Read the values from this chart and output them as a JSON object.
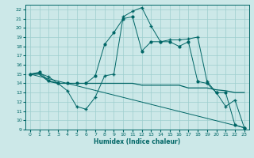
{
  "title": "",
  "xlabel": "Humidex (Indice chaleur)",
  "xlim": [
    -0.5,
    23.5
  ],
  "ylim": [
    9,
    22.5
  ],
  "yticks": [
    9,
    10,
    11,
    12,
    13,
    14,
    15,
    16,
    17,
    18,
    19,
    20,
    21,
    22
  ],
  "xticks": [
    0,
    1,
    2,
    3,
    4,
    5,
    6,
    7,
    8,
    9,
    10,
    11,
    12,
    13,
    14,
    15,
    16,
    17,
    18,
    19,
    20,
    21,
    22,
    23
  ],
  "bg_color": "#cce8e8",
  "grid_color": "#9ecece",
  "line_color": "#006666",
  "line1_x": [
    0,
    1,
    2,
    3,
    4,
    5,
    6,
    7,
    8,
    9,
    10,
    11,
    12,
    13,
    14,
    15,
    16,
    17,
    18,
    19,
    20,
    21,
    22,
    23
  ],
  "line1_y": [
    15.0,
    15.1,
    14.7,
    14.0,
    13.2,
    11.5,
    11.2,
    12.5,
    14.8,
    15.0,
    21.2,
    21.8,
    22.2,
    20.2,
    18.5,
    18.7,
    18.7,
    18.8,
    19.0,
    14.2,
    13.0,
    11.5,
    12.2,
    9.2
  ],
  "line2_x": [
    0,
    1,
    2,
    3,
    4,
    5,
    6,
    7,
    8,
    9,
    10,
    11,
    12,
    13,
    14,
    15,
    16,
    17,
    18,
    19,
    20,
    21,
    22,
    23
  ],
  "line2_y": [
    15.0,
    15.2,
    14.3,
    14.0,
    14.0,
    14.0,
    14.0,
    14.8,
    18.2,
    19.5,
    21.0,
    21.2,
    17.5,
    18.5,
    18.5,
    18.5,
    18.0,
    18.5,
    14.2,
    14.0,
    13.0,
    13.0,
    9.5,
    9.2
  ],
  "line3_x": [
    0,
    1,
    2,
    3,
    4,
    5,
    6,
    7,
    8,
    9,
    10,
    11,
    12,
    13,
    14,
    15,
    16,
    17,
    18,
    19,
    20,
    21,
    22,
    23
  ],
  "line3_y": [
    15.0,
    15.0,
    14.2,
    14.0,
    14.0,
    14.0,
    14.0,
    14.0,
    14.0,
    14.0,
    14.0,
    14.0,
    13.8,
    13.8,
    13.8,
    13.8,
    13.8,
    13.5,
    13.5,
    13.5,
    13.3,
    13.2,
    13.0,
    13.0
  ],
  "line4_x": [
    0,
    23
  ],
  "line4_y": [
    15.0,
    9.2
  ]
}
